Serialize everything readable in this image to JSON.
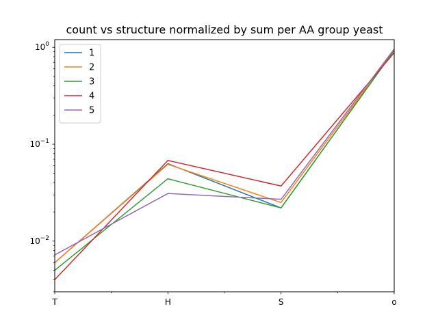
{
  "chart_data": {
    "type": "line",
    "title": "count vs structure normalized by sum per AA group yeast",
    "xlabel": "",
    "ylabel": "",
    "yscale": "log",
    "ylim": [
      0.003,
      1.2
    ],
    "categories": [
      "T",
      "H",
      "S",
      "o"
    ],
    "y_ticks": [
      {
        "value": 0.01,
        "base": "10",
        "exp": "−2"
      },
      {
        "value": 0.1,
        "base": "10",
        "exp": "−1"
      },
      {
        "value": 1,
        "base": "10",
        "exp": "0"
      }
    ],
    "legend_position": "upper-left",
    "series": [
      {
        "name": "1",
        "color": "#1f77b4",
        "values": [
          0.006,
          0.063,
          0.022,
          0.93
        ]
      },
      {
        "name": "2",
        "color": "#ff7f0e",
        "values": [
          0.006,
          0.062,
          0.025,
          0.93
        ]
      },
      {
        "name": "3",
        "color": "#2ca02c",
        "values": [
          0.005,
          0.044,
          0.022,
          0.93
        ]
      },
      {
        "name": "4",
        "color": "#d62728",
        "values": [
          0.004,
          0.068,
          0.037,
          0.88
        ]
      },
      {
        "name": "5",
        "color": "#9467bd",
        "values": [
          0.0072,
          0.031,
          0.027,
          0.96
        ]
      }
    ]
  }
}
